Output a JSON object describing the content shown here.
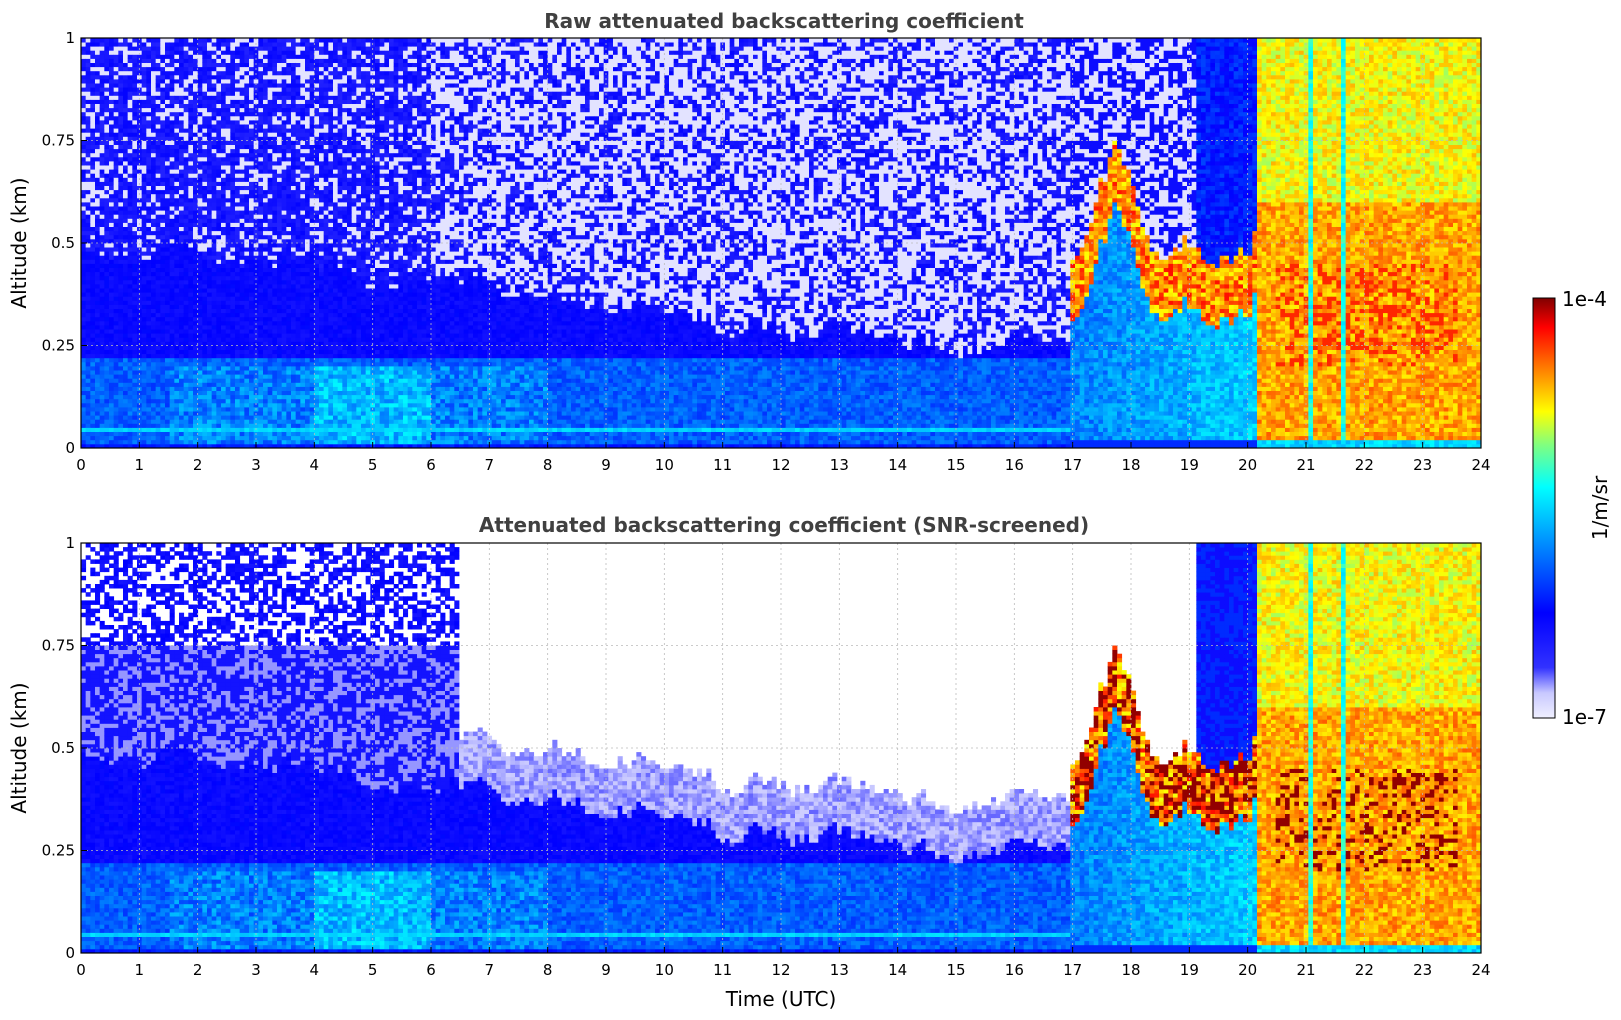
{
  "chart_data": [
    {
      "type": "heatmap",
      "title": "Raw attenuated backscattering coefficient",
      "xlabel": "",
      "ylabel": "Altitude (km)",
      "xlim": [
        0,
        24
      ],
      "ylim": [
        0,
        1
      ],
      "x_ticks": [
        "0",
        "1",
        "2",
        "3",
        "4",
        "5",
        "6",
        "7",
        "8",
        "9",
        "10",
        "11",
        "12",
        "13",
        "14",
        "15",
        "16",
        "17",
        "18",
        "19",
        "20",
        "21",
        "22",
        "23",
        "24"
      ],
      "y_ticks": [
        "0",
        "0.25",
        "0.5",
        "0.75",
        "1"
      ],
      "grid": true,
      "screened": false,
      "regimes": [
        {
          "from": 0,
          "to": 17,
          "description_values": {
            "surface_layer_top_km": 0.05,
            "aerosol_layer_top_km": 0.25,
            "boundary_layer_top_km": 0.5
          }
        },
        {
          "from": 17,
          "to": 20.2,
          "description_values": {
            "cloud_base_km": 0.35
          }
        },
        {
          "from": 20.2,
          "to": 24,
          "description_values": {
            "cloud_base_km": 0.03
          }
        }
      ]
    },
    {
      "type": "heatmap",
      "title": "Attenuated backscattering coefficient (SNR-screened)",
      "xlabel": "Time (UTC)",
      "ylabel": "Altitude (km)",
      "xlim": [
        0,
        24
      ],
      "ylim": [
        0,
        1
      ],
      "x_ticks": [
        "0",
        "1",
        "2",
        "3",
        "4",
        "5",
        "6",
        "7",
        "8",
        "9",
        "10",
        "11",
        "12",
        "13",
        "14",
        "15",
        "16",
        "17",
        "18",
        "19",
        "20",
        "21",
        "22",
        "23",
        "24"
      ],
      "y_ticks": [
        "0",
        "0.25",
        "0.5",
        "0.75",
        "1"
      ],
      "grid": true,
      "screened": true
    }
  ],
  "colorbar": {
    "label": "1/m/sr",
    "max_label": "1e-4",
    "min_label": "1e-7",
    "colormap": "jet-with-light-lavender-low-end",
    "colors": [
      "#f0f0ff",
      "#0000ff",
      "#00ffff",
      "#ffff00",
      "#ff8000",
      "#ff0000",
      "#800000"
    ]
  }
}
